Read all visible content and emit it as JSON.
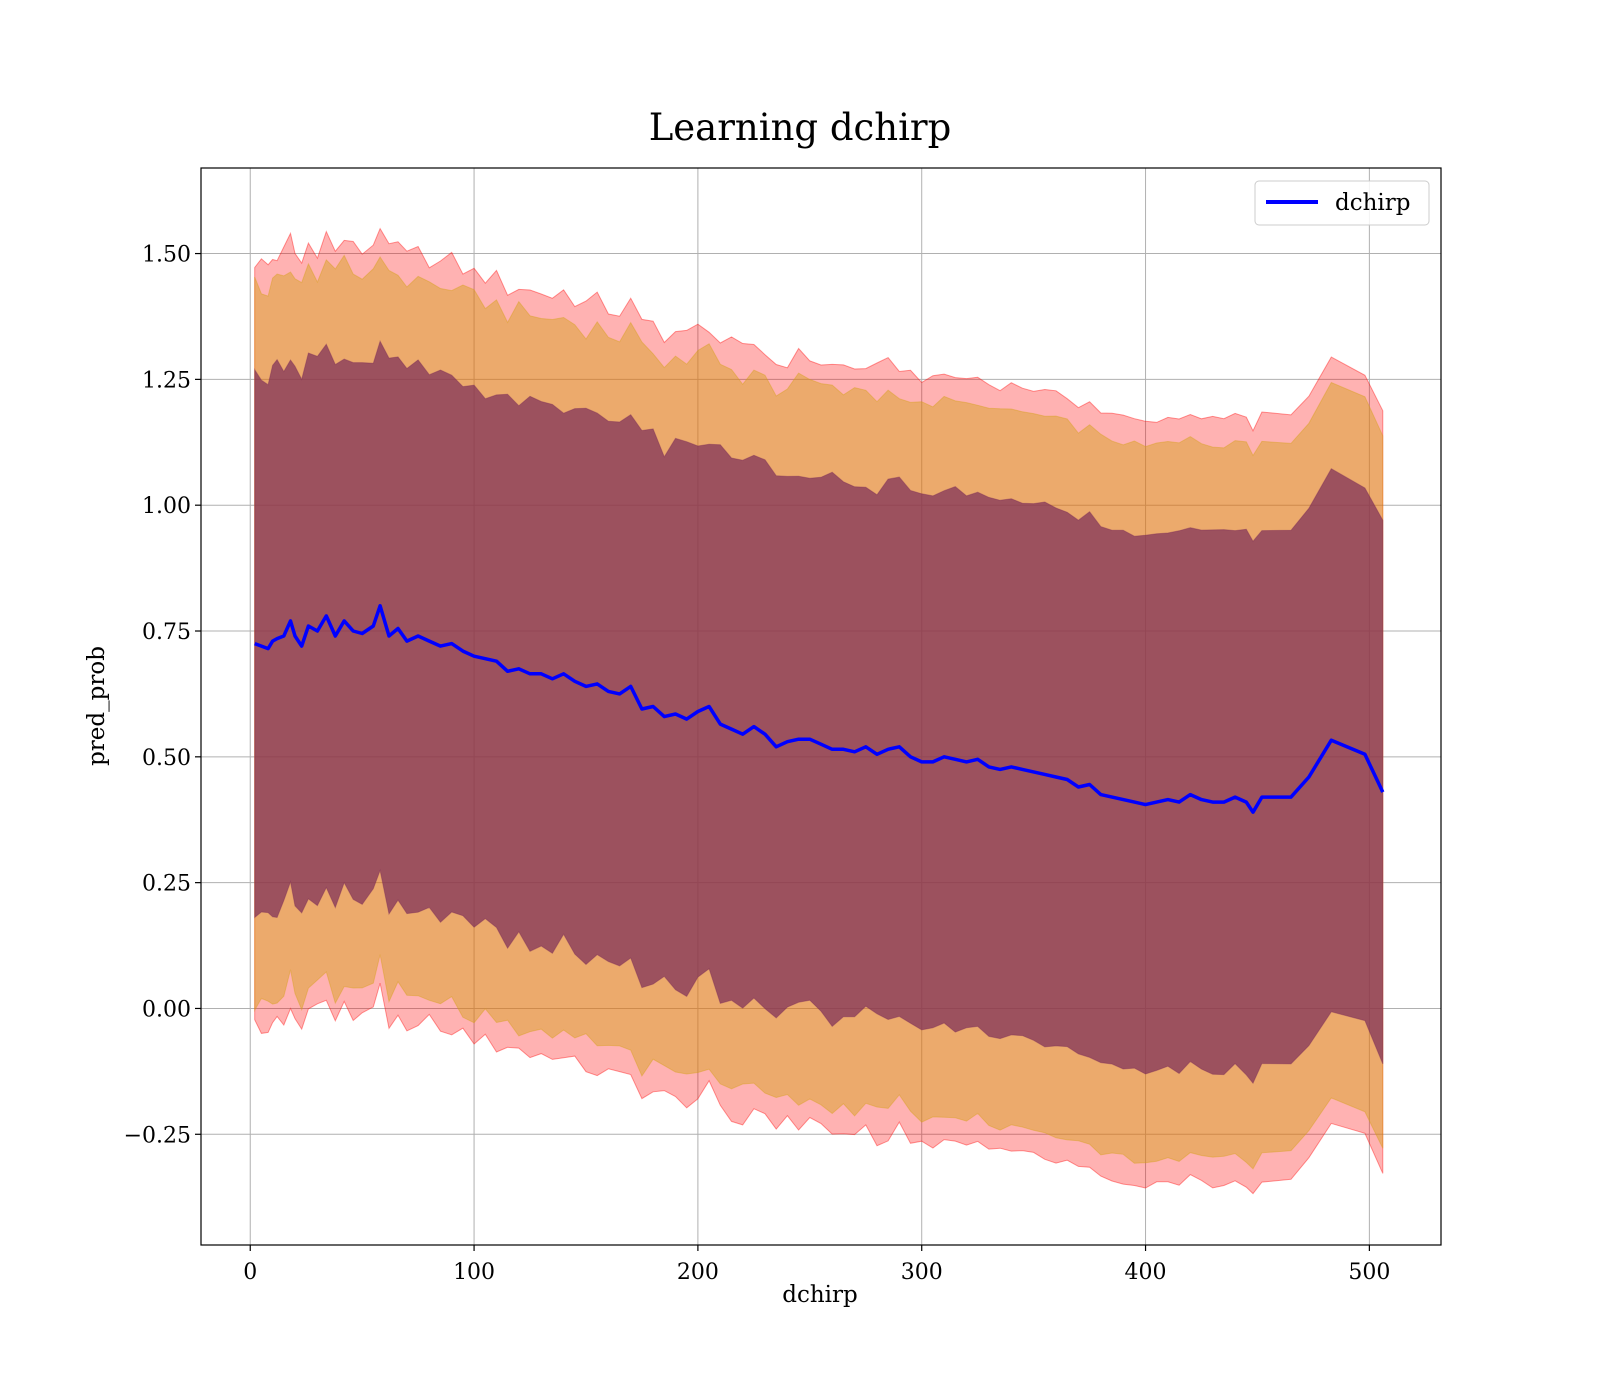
{
  "chart_data": {
    "type": "area",
    "title": "Learning dchirp",
    "xlabel": "dchirp",
    "ylabel": "pred_prob",
    "xlim": [
      -22,
      532
    ],
    "ylim": [
      -0.47,
      1.67
    ],
    "grid": true,
    "legend_position": "top-right",
    "xticks": [
      0,
      100,
      200,
      300,
      400,
      500
    ],
    "xtick_labels": [
      "0",
      "100",
      "200",
      "300",
      "400",
      "500"
    ],
    "yticks": [
      -0.25,
      0.0,
      0.25,
      0.5,
      0.75,
      1.0,
      1.25,
      1.5
    ],
    "ytick_labels": [
      "−0.25",
      "0.00",
      "0.25",
      "0.50",
      "0.75",
      "1.00",
      "1.25",
      "1.50"
    ],
    "colors": {
      "line": "#0000ff",
      "band_outer": "#ff0000",
      "band_middle": "#d4a017",
      "band_inner": "#7a2b58"
    },
    "series": [
      {
        "name": "dchirp",
        "x": [
          2,
          5,
          8,
          10,
          12,
          15,
          18,
          20,
          23,
          26,
          30,
          34,
          38,
          42,
          46,
          50,
          55,
          58,
          62,
          66,
          70,
          75,
          80,
          85,
          90,
          95,
          100,
          105,
          110,
          115,
          120,
          125,
          130,
          135,
          140,
          145,
          150,
          155,
          160,
          165,
          170,
          175,
          180,
          185,
          190,
          195,
          200,
          205,
          210,
          215,
          220,
          225,
          230,
          235,
          240,
          245,
          250,
          255,
          260,
          265,
          270,
          275,
          280,
          285,
          290,
          295,
          300,
          305,
          310,
          315,
          320,
          325,
          330,
          335,
          340,
          345,
          350,
          355,
          360,
          365,
          370,
          375,
          380,
          385,
          390,
          395,
          400,
          405,
          410,
          415,
          420,
          425,
          430,
          435,
          440,
          445,
          448,
          452,
          465,
          473,
          483,
          498,
          506
        ],
        "values": [
          0.725,
          0.72,
          0.715,
          0.73,
          0.735,
          0.74,
          0.77,
          0.74,
          0.72,
          0.76,
          0.75,
          0.78,
          0.74,
          0.77,
          0.75,
          0.745,
          0.76,
          0.8,
          0.74,
          0.755,
          0.73,
          0.74,
          0.73,
          0.72,
          0.725,
          0.71,
          0.7,
          0.695,
          0.69,
          0.67,
          0.675,
          0.665,
          0.665,
          0.655,
          0.665,
          0.65,
          0.64,
          0.645,
          0.63,
          0.625,
          0.64,
          0.595,
          0.6,
          0.58,
          0.585,
          0.575,
          0.59,
          0.6,
          0.565,
          0.555,
          0.545,
          0.56,
          0.545,
          0.52,
          0.53,
          0.535,
          0.535,
          0.525,
          0.515,
          0.515,
          0.51,
          0.52,
          0.505,
          0.515,
          0.52,
          0.5,
          0.49,
          0.49,
          0.5,
          0.495,
          0.49,
          0.495,
          0.48,
          0.475,
          0.48,
          0.475,
          0.47,
          0.465,
          0.46,
          0.455,
          0.44,
          0.445,
          0.425,
          0.42,
          0.415,
          0.41,
          0.405,
          0.41,
          0.415,
          0.41,
          0.425,
          0.415,
          0.41,
          0.41,
          0.42,
          0.41,
          0.39,
          0.42,
          0.42,
          0.46,
          0.533,
          0.505,
          0.43
        ]
      }
    ],
    "bands": [
      {
        "half_width_start": 0.76,
        "half_width_end": 0.76
      },
      {
        "half_width_start": 0.71,
        "half_width_end": 0.71
      },
      {
        "half_width_start": 0.535,
        "half_width_end": 0.535
      }
    ]
  }
}
